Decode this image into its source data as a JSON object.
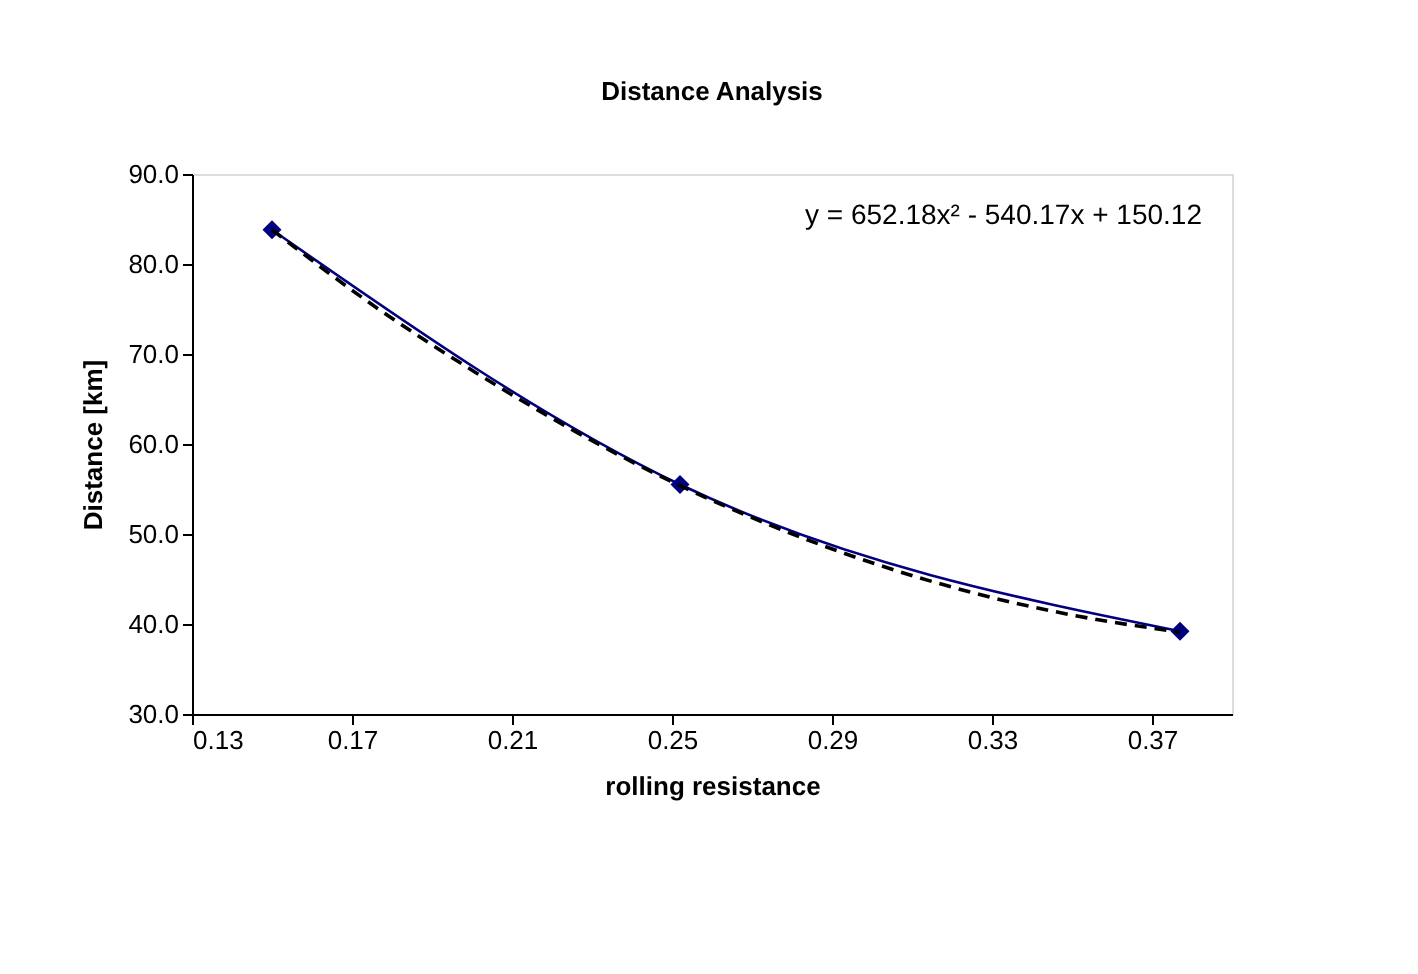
{
  "chart_data": {
    "type": "line",
    "title": "Distance Analysis",
    "xlabel": "rolling resistance",
    "ylabel": "Distance [km]",
    "x": [
      0.15,
      0.252,
      0.377
    ],
    "series": [
      {
        "color": "#000080",
        "values": [
          83.8,
          55.5,
          39.2
        ],
        "marker": "diamond",
        "line_style": "solid"
      },
      {
        "type": "line",
        "color": "#000000",
        "x": [
          0.15,
          0.175,
          0.2,
          0.225,
          0.25,
          0.275,
          0.3,
          0.325,
          0.35,
          0.377
        ],
        "values": [
          83.8,
          75.5,
          68.2,
          61.6,
          55.8,
          50.9,
          46.8,
          43.5,
          41.0,
          39.1
        ],
        "marker": "none",
        "line_style": "dashed"
      }
    ],
    "xlim": [
      0.13,
      0.39
    ],
    "xticks": [
      {
        "value": 0.13,
        "label": "0.13"
      },
      {
        "value": 0.17,
        "label": "0.17"
      },
      {
        "value": 0.21,
        "label": "0.21"
      },
      {
        "value": 0.25,
        "label": "0.25"
      },
      {
        "value": 0.29,
        "label": "0.29"
      },
      {
        "value": 0.33,
        "label": "0.33"
      },
      {
        "value": 0.37,
        "label": "0.37"
      }
    ],
    "ylim": [
      30,
      90
    ],
    "yticks": [
      {
        "value": 30,
        "label": "30.0"
      },
      {
        "value": 40,
        "label": "40.0"
      },
      {
        "value": 50,
        "label": "50.0"
      },
      {
        "value": 60,
        "label": "60.0"
      },
      {
        "value": 70,
        "label": "70.0"
      },
      {
        "value": 80,
        "label": "80.0"
      },
      {
        "value": 90,
        "label": "90.0"
      }
    ],
    "annotations": [
      "y = 652.18x² - 540.17x + 150.12"
    ],
    "grid": false
  }
}
